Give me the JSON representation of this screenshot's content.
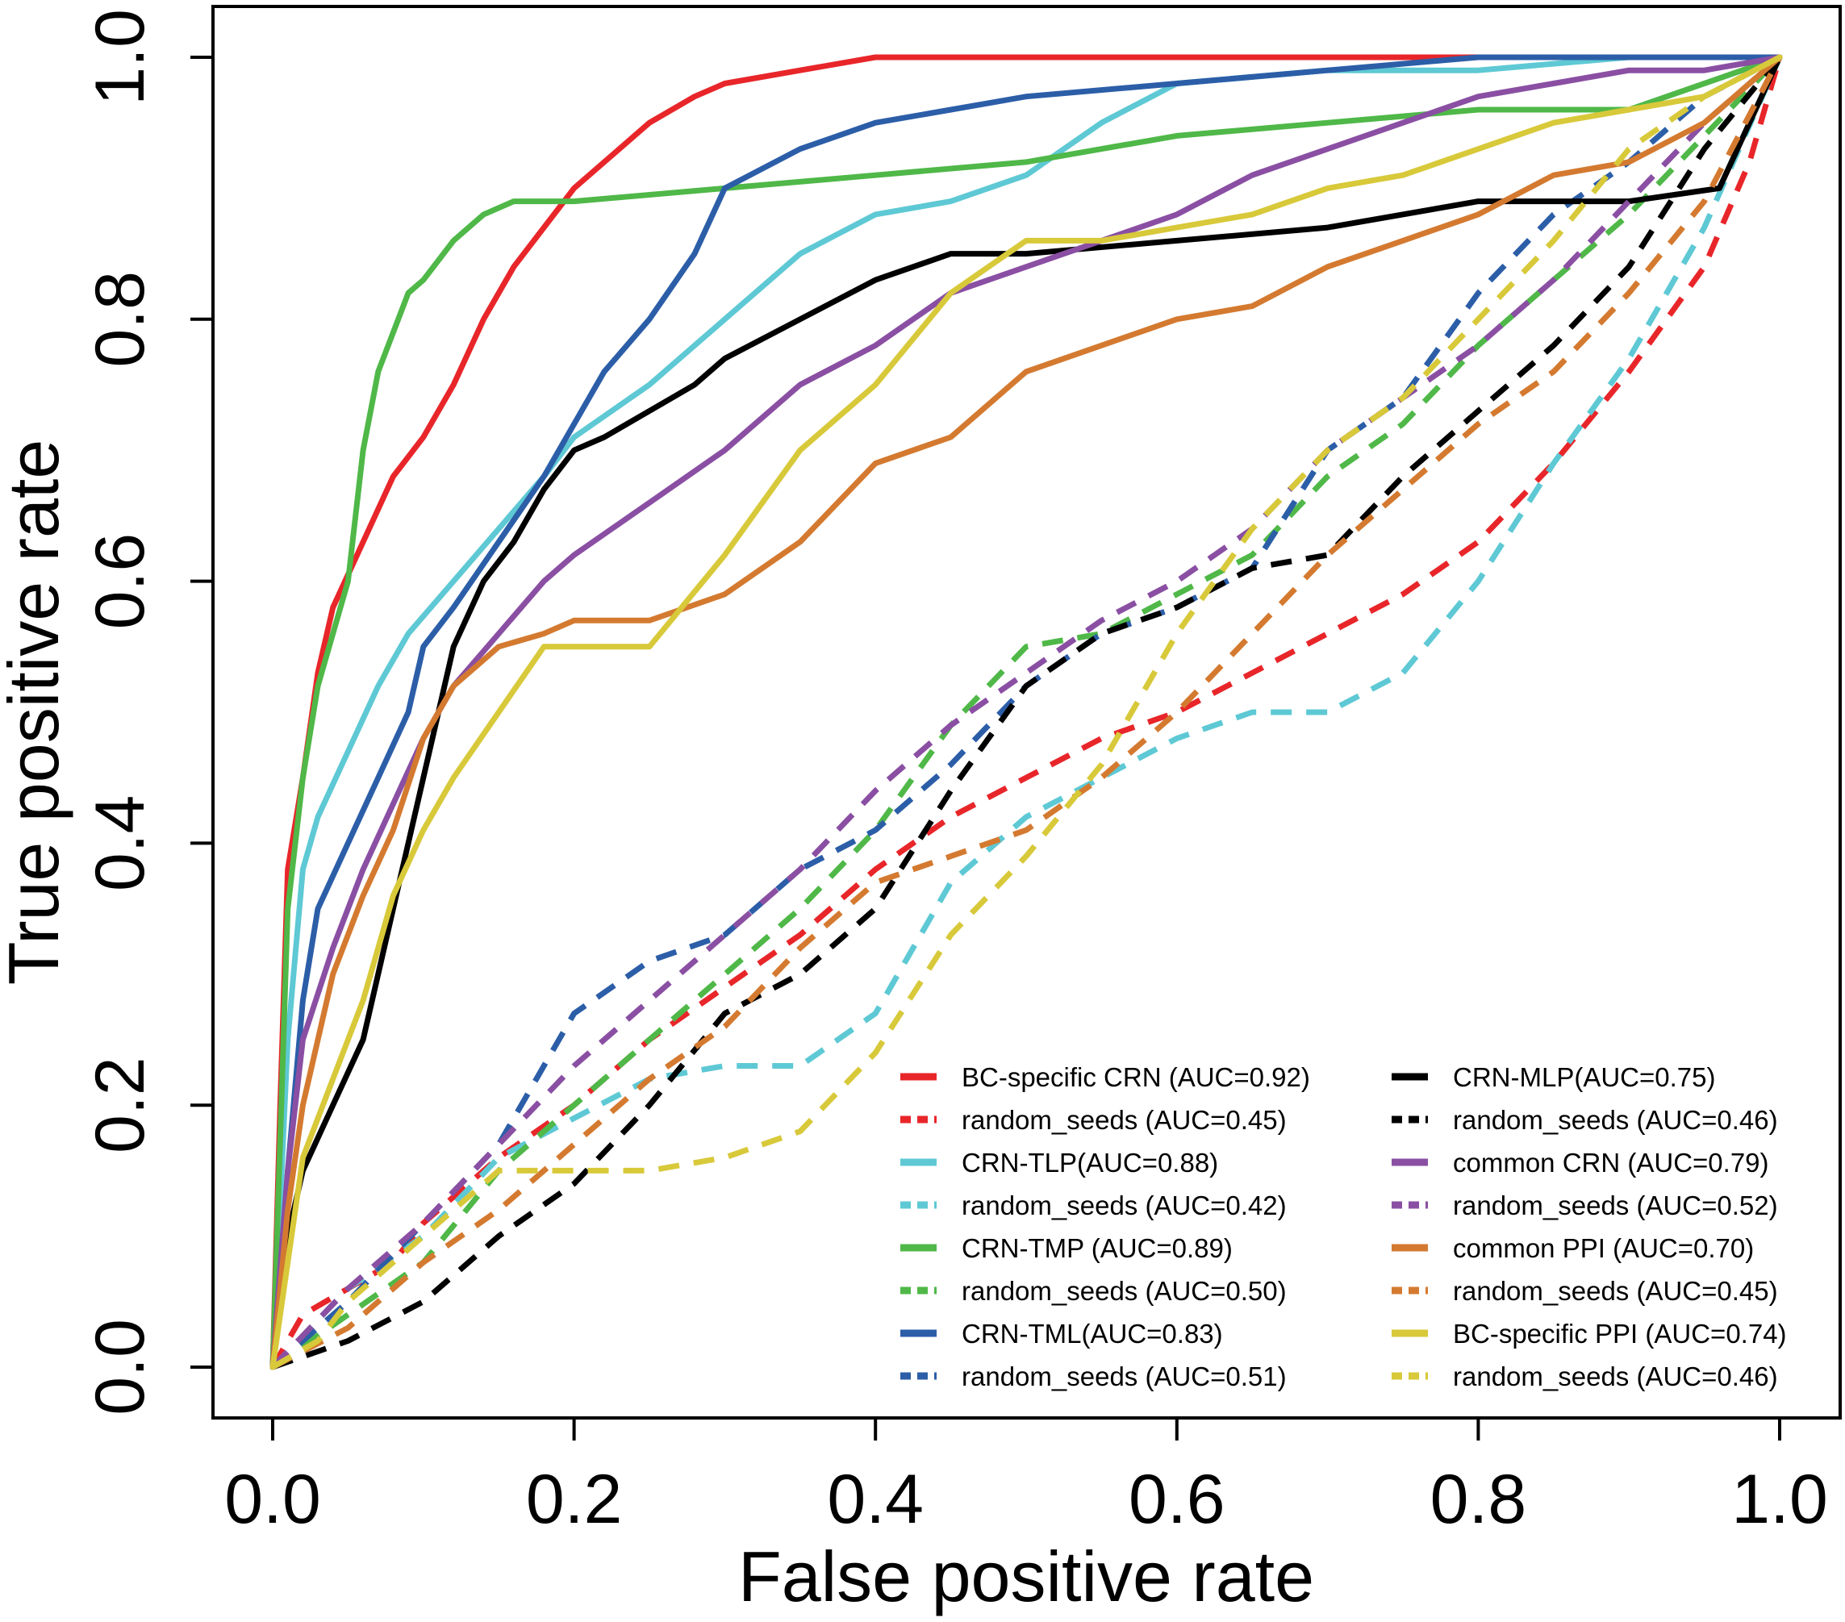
{
  "chart_data": {
    "type": "line",
    "title": "",
    "xlabel": "False positive rate",
    "ylabel": "True positive rate",
    "xlim": [
      0.0,
      1.0
    ],
    "ylim": [
      0.0,
      1.0
    ],
    "xticks": [
      "0.0",
      "0.2",
      "0.4",
      "0.6",
      "0.8",
      "1.0"
    ],
    "yticks": [
      "0.0",
      "0.2",
      "0.4",
      "0.6",
      "0.8",
      "1.0"
    ],
    "grid": false,
    "legend_position": "bottom-right",
    "series": [
      {
        "name": "BC-specific CRN (AUC=0.92)",
        "color": "#e8262a",
        "style": "solid",
        "x": [
          0,
          0.005,
          0.01,
          0.02,
          0.03,
          0.04,
          0.06,
          0.08,
          0.1,
          0.12,
          0.14,
          0.16,
          0.18,
          0.2,
          0.22,
          0.25,
          0.28,
          0.3,
          0.35,
          0.4,
          0.45,
          0.5,
          0.6,
          0.7,
          0.8,
          0.9,
          1.0
        ],
        "y": [
          0,
          0.2,
          0.38,
          0.45,
          0.53,
          0.58,
          0.63,
          0.68,
          0.71,
          0.75,
          0.8,
          0.84,
          0.87,
          0.9,
          0.92,
          0.95,
          0.97,
          0.98,
          0.99,
          1.0,
          1.0,
          1.0,
          1.0,
          1.0,
          1.0,
          1.0,
          1.0
        ]
      },
      {
        "name": "random_seeds (AUC=0.45)",
        "color": "#e8262a",
        "style": "dashed",
        "x": [
          0,
          0.02,
          0.05,
          0.08,
          0.1,
          0.15,
          0.2,
          0.25,
          0.3,
          0.35,
          0.4,
          0.45,
          0.5,
          0.55,
          0.6,
          0.65,
          0.7,
          0.75,
          0.8,
          0.85,
          0.9,
          0.95,
          0.98,
          1.0
        ],
        "y": [
          0,
          0.04,
          0.06,
          0.08,
          0.11,
          0.16,
          0.2,
          0.25,
          0.29,
          0.33,
          0.38,
          0.42,
          0.45,
          0.48,
          0.5,
          0.53,
          0.56,
          0.59,
          0.63,
          0.69,
          0.76,
          0.84,
          0.92,
          1.0
        ]
      },
      {
        "name": "CRN-TLP(AUC=0.88)",
        "color": "#5ec9d4",
        "style": "solid",
        "x": [
          0,
          0.01,
          0.02,
          0.03,
          0.05,
          0.07,
          0.09,
          0.12,
          0.15,
          0.18,
          0.2,
          0.25,
          0.3,
          0.35,
          0.4,
          0.45,
          0.5,
          0.55,
          0.6,
          0.7,
          0.8,
          0.9,
          1.0
        ],
        "y": [
          0,
          0.25,
          0.38,
          0.42,
          0.47,
          0.52,
          0.56,
          0.6,
          0.64,
          0.68,
          0.71,
          0.75,
          0.8,
          0.85,
          0.88,
          0.89,
          0.91,
          0.95,
          0.98,
          0.99,
          0.99,
          1.0,
          1.0
        ]
      },
      {
        "name": "random_seeds (AUC=0.42)",
        "color": "#5ec9d4",
        "style": "dashed",
        "x": [
          0,
          0.05,
          0.1,
          0.15,
          0.2,
          0.25,
          0.3,
          0.35,
          0.4,
          0.45,
          0.5,
          0.55,
          0.6,
          0.65,
          0.7,
          0.75,
          0.8,
          0.85,
          0.9,
          0.95,
          1.0
        ],
        "y": [
          0,
          0.06,
          0.1,
          0.16,
          0.19,
          0.22,
          0.23,
          0.23,
          0.27,
          0.37,
          0.42,
          0.45,
          0.48,
          0.5,
          0.5,
          0.53,
          0.6,
          0.69,
          0.77,
          0.87,
          1.0
        ]
      },
      {
        "name": "CRN-TMP (AUC=0.89)",
        "color": "#4fb848",
        "style": "solid",
        "x": [
          0,
          0.01,
          0.02,
          0.03,
          0.05,
          0.06,
          0.07,
          0.09,
          0.1,
          0.12,
          0.14,
          0.16,
          0.2,
          0.3,
          0.4,
          0.5,
          0.6,
          0.7,
          0.8,
          0.9,
          1.0
        ],
        "y": [
          0,
          0.35,
          0.45,
          0.52,
          0.6,
          0.7,
          0.76,
          0.82,
          0.83,
          0.86,
          0.88,
          0.89,
          0.89,
          0.9,
          0.91,
          0.92,
          0.94,
          0.95,
          0.96,
          0.96,
          1.0
        ]
      },
      {
        "name": "random_seeds (AUC=0.50)",
        "color": "#4fb848",
        "style": "dashed",
        "x": [
          0,
          0.05,
          0.1,
          0.15,
          0.2,
          0.25,
          0.3,
          0.35,
          0.4,
          0.45,
          0.5,
          0.55,
          0.6,
          0.65,
          0.7,
          0.75,
          0.8,
          0.85,
          0.9,
          0.95,
          1.0
        ],
        "y": [
          0,
          0.04,
          0.08,
          0.15,
          0.2,
          0.25,
          0.3,
          0.35,
          0.41,
          0.49,
          0.55,
          0.56,
          0.59,
          0.62,
          0.68,
          0.72,
          0.78,
          0.83,
          0.88,
          0.94,
          1.0
        ]
      },
      {
        "name": "CRN-TML(AUC=0.83)",
        "color": "#2c5ea8",
        "style": "solid",
        "x": [
          0,
          0.01,
          0.02,
          0.03,
          0.05,
          0.07,
          0.09,
          0.1,
          0.12,
          0.15,
          0.18,
          0.2,
          0.22,
          0.25,
          0.28,
          0.3,
          0.35,
          0.4,
          0.45,
          0.5,
          0.6,
          0.7,
          0.8,
          0.9,
          1.0
        ],
        "y": [
          0,
          0.15,
          0.28,
          0.35,
          0.4,
          0.45,
          0.5,
          0.55,
          0.58,
          0.63,
          0.68,
          0.72,
          0.76,
          0.8,
          0.85,
          0.9,
          0.93,
          0.95,
          0.96,
          0.97,
          0.98,
          0.99,
          1.0,
          1.0,
          1.0
        ]
      },
      {
        "name": "random_seeds (AUC=0.51)",
        "color": "#2c5ea8",
        "style": "dashed",
        "x": [
          0,
          0.05,
          0.1,
          0.15,
          0.2,
          0.25,
          0.3,
          0.35,
          0.4,
          0.45,
          0.5,
          0.55,
          0.6,
          0.65,
          0.7,
          0.75,
          0.8,
          0.85,
          0.9,
          0.95,
          1.0
        ],
        "y": [
          0,
          0.05,
          0.11,
          0.17,
          0.27,
          0.31,
          0.33,
          0.38,
          0.41,
          0.46,
          0.52,
          0.56,
          0.58,
          0.61,
          0.7,
          0.74,
          0.82,
          0.88,
          0.92,
          0.97,
          1.0
        ]
      },
      {
        "name": "CRN-MLP(AUC=0.75)",
        "color": "#000000",
        "style": "solid",
        "x": [
          0,
          0.01,
          0.02,
          0.04,
          0.06,
          0.08,
          0.1,
          0.12,
          0.14,
          0.16,
          0.18,
          0.2,
          0.22,
          0.25,
          0.28,
          0.3,
          0.35,
          0.4,
          0.45,
          0.5,
          0.6,
          0.7,
          0.8,
          0.9,
          0.96,
          1.0
        ],
        "y": [
          0,
          0.1,
          0.15,
          0.2,
          0.25,
          0.35,
          0.45,
          0.55,
          0.6,
          0.63,
          0.67,
          0.7,
          0.71,
          0.73,
          0.75,
          0.77,
          0.8,
          0.83,
          0.85,
          0.85,
          0.86,
          0.87,
          0.89,
          0.89,
          0.9,
          1.0
        ]
      },
      {
        "name": "random_seeds (AUC=0.46)",
        "color": "#000000",
        "style": "dashed",
        "x": [
          0,
          0.05,
          0.1,
          0.15,
          0.2,
          0.25,
          0.3,
          0.35,
          0.4,
          0.45,
          0.5,
          0.55,
          0.6,
          0.65,
          0.7,
          0.75,
          0.8,
          0.85,
          0.9,
          0.95,
          1.0
        ],
        "y": [
          0,
          0.02,
          0.05,
          0.1,
          0.14,
          0.2,
          0.27,
          0.3,
          0.35,
          0.44,
          0.52,
          0.56,
          0.58,
          0.61,
          0.62,
          0.68,
          0.73,
          0.78,
          0.84,
          0.93,
          1.0
        ]
      },
      {
        "name": "common CRN (AUC=0.79)",
        "color": "#8a4fa3",
        "style": "solid",
        "x": [
          0,
          0.01,
          0.02,
          0.04,
          0.06,
          0.08,
          0.1,
          0.12,
          0.15,
          0.18,
          0.2,
          0.25,
          0.3,
          0.35,
          0.4,
          0.45,
          0.5,
          0.55,
          0.6,
          0.65,
          0.7,
          0.75,
          0.8,
          0.85,
          0.9,
          0.95,
          1.0
        ],
        "y": [
          0,
          0.15,
          0.25,
          0.32,
          0.38,
          0.43,
          0.48,
          0.52,
          0.56,
          0.6,
          0.62,
          0.66,
          0.7,
          0.75,
          0.78,
          0.82,
          0.84,
          0.86,
          0.88,
          0.91,
          0.93,
          0.95,
          0.97,
          0.98,
          0.99,
          0.99,
          1.0
        ]
      },
      {
        "name": "random_seeds (AUC=0.52)",
        "color": "#8a4fa3",
        "style": "dashed",
        "x": [
          0,
          0.05,
          0.1,
          0.15,
          0.2,
          0.25,
          0.3,
          0.35,
          0.4,
          0.45,
          0.5,
          0.55,
          0.6,
          0.65,
          0.7,
          0.75,
          0.8,
          0.85,
          0.9,
          0.95,
          1.0
        ],
        "y": [
          0,
          0.06,
          0.11,
          0.17,
          0.23,
          0.28,
          0.33,
          0.38,
          0.44,
          0.49,
          0.53,
          0.57,
          0.6,
          0.64,
          0.7,
          0.74,
          0.78,
          0.83,
          0.89,
          0.95,
          1.0
        ]
      },
      {
        "name": "common PPI (AUC=0.70)",
        "color": "#d47a30",
        "style": "solid",
        "x": [
          0,
          0.01,
          0.02,
          0.04,
          0.06,
          0.08,
          0.1,
          0.12,
          0.15,
          0.18,
          0.2,
          0.25,
          0.3,
          0.35,
          0.4,
          0.45,
          0.5,
          0.55,
          0.6,
          0.65,
          0.7,
          0.75,
          0.8,
          0.85,
          0.9,
          0.95,
          1.0
        ],
        "y": [
          0,
          0.12,
          0.2,
          0.3,
          0.36,
          0.41,
          0.48,
          0.52,
          0.55,
          0.56,
          0.57,
          0.57,
          0.59,
          0.63,
          0.69,
          0.71,
          0.76,
          0.78,
          0.8,
          0.81,
          0.84,
          0.86,
          0.88,
          0.91,
          0.92,
          0.95,
          1.0
        ]
      },
      {
        "name": "random_seeds (AUC=0.45)",
        "color": "#d47a30",
        "style": "dashed",
        "x": [
          0,
          0.05,
          0.1,
          0.15,
          0.2,
          0.25,
          0.3,
          0.35,
          0.4,
          0.45,
          0.5,
          0.55,
          0.6,
          0.65,
          0.7,
          0.75,
          0.8,
          0.85,
          0.9,
          0.95,
          1.0
        ],
        "y": [
          0,
          0.03,
          0.08,
          0.12,
          0.17,
          0.22,
          0.26,
          0.32,
          0.37,
          0.39,
          0.41,
          0.45,
          0.5,
          0.56,
          0.62,
          0.67,
          0.72,
          0.76,
          0.82,
          0.89,
          1.0
        ]
      },
      {
        "name": "BC-specific PPI (AUC=0.74)",
        "color": "#d8c93a",
        "style": "solid",
        "x": [
          0,
          0.01,
          0.02,
          0.04,
          0.06,
          0.08,
          0.1,
          0.12,
          0.15,
          0.18,
          0.2,
          0.25,
          0.3,
          0.35,
          0.4,
          0.45,
          0.5,
          0.55,
          0.6,
          0.65,
          0.7,
          0.75,
          0.8,
          0.85,
          0.9,
          0.95,
          1.0
        ],
        "y": [
          0,
          0.08,
          0.16,
          0.22,
          0.28,
          0.36,
          0.41,
          0.45,
          0.5,
          0.55,
          0.55,
          0.55,
          0.62,
          0.7,
          0.75,
          0.82,
          0.86,
          0.86,
          0.87,
          0.88,
          0.9,
          0.91,
          0.93,
          0.95,
          0.96,
          0.97,
          1.0
        ]
      },
      {
        "name": "random_seeds (AUC=0.46)",
        "color": "#d8c93a",
        "style": "dashed",
        "x": [
          0,
          0.03,
          0.05,
          0.1,
          0.15,
          0.2,
          0.25,
          0.3,
          0.35,
          0.4,
          0.45,
          0.5,
          0.55,
          0.6,
          0.65,
          0.7,
          0.75,
          0.8,
          0.85,
          0.9,
          0.95,
          1.0
        ],
        "y": [
          0,
          0.02,
          0.05,
          0.1,
          0.15,
          0.15,
          0.15,
          0.16,
          0.18,
          0.24,
          0.33,
          0.39,
          0.46,
          0.56,
          0.64,
          0.7,
          0.74,
          0.8,
          0.86,
          0.93,
          0.97,
          1.0
        ]
      }
    ]
  }
}
